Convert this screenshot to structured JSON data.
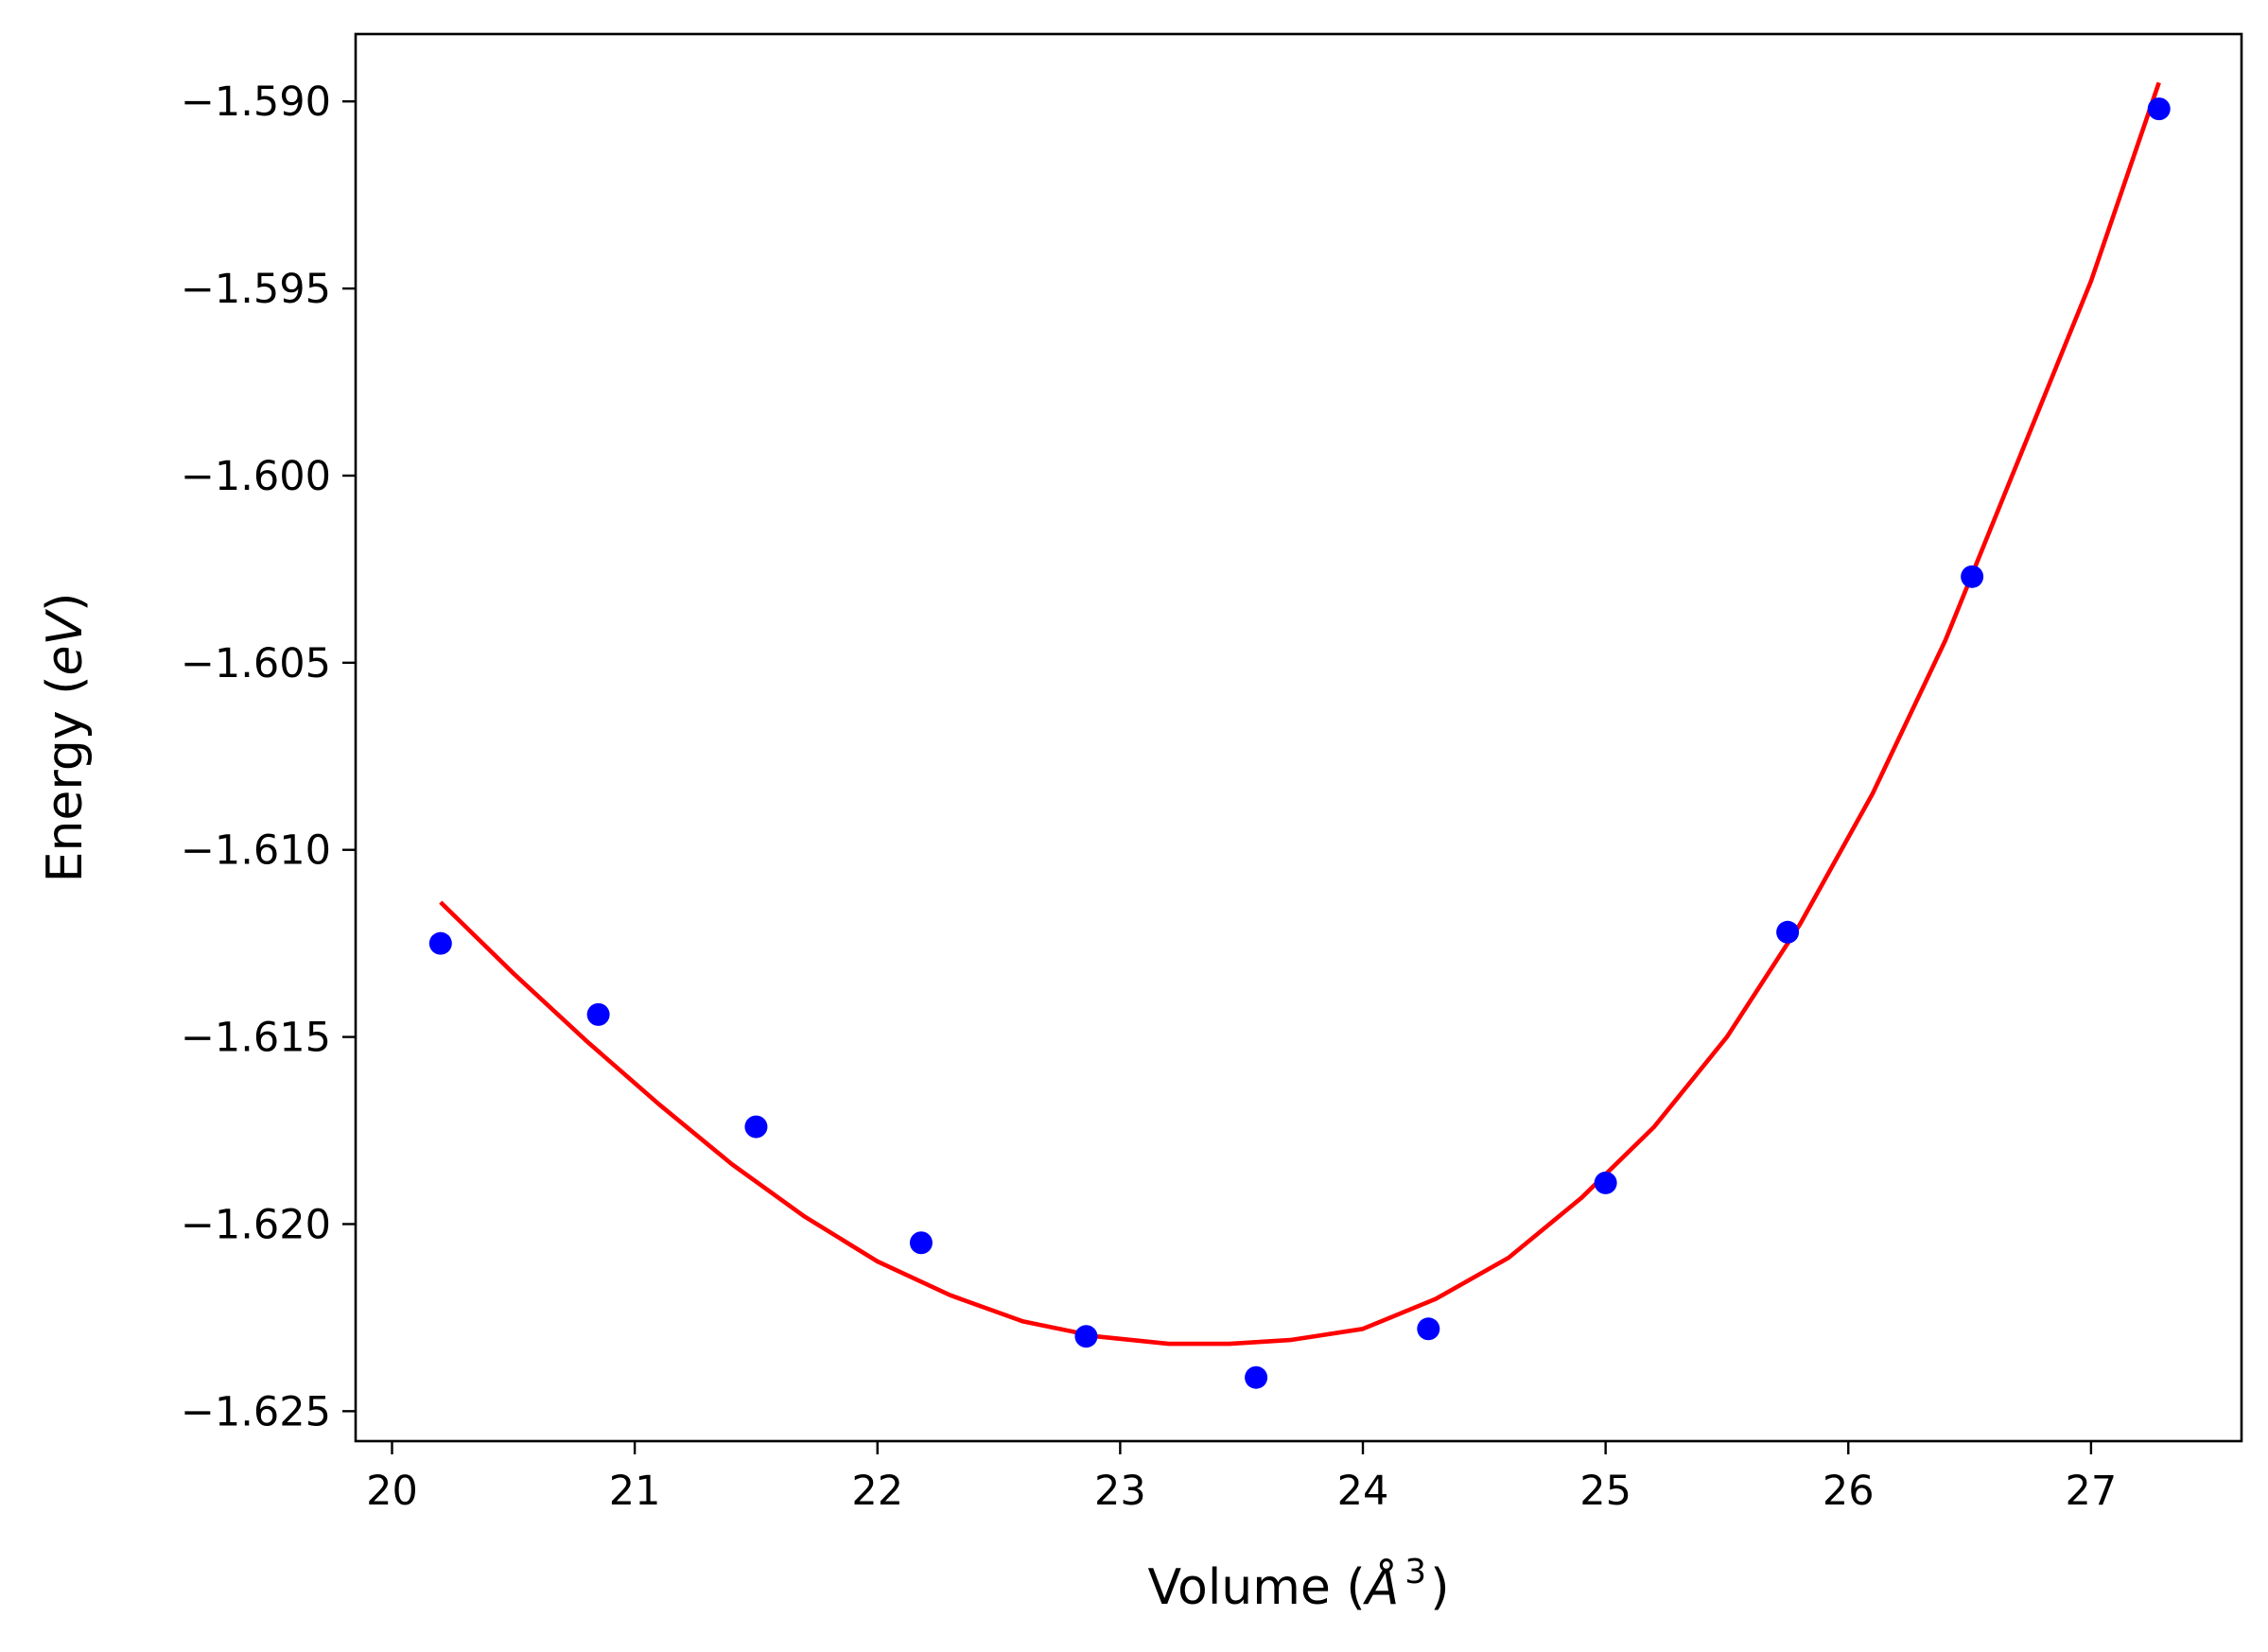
{
  "chart_data": {
    "type": "scatter",
    "title": "",
    "xlabel_prefix": "Volume (",
    "xlabel_symbol": "Å",
    "xlabel_exponent": "3",
    "xlabel_suffix": ")",
    "ylabel_prefix": "Energy (",
    "ylabel_symbol": "eV",
    "ylabel_suffix": ")",
    "xlim": [
      19.85,
      27.62
    ],
    "ylim": [
      -1.6258,
      -1.5882
    ],
    "xticks": [
      20,
      21,
      22,
      23,
      24,
      25,
      26,
      27
    ],
    "xtick_labels": [
      "20",
      "21",
      "22",
      "23",
      "24",
      "25",
      "26",
      "27"
    ],
    "yticks": [
      -1.59,
      -1.595,
      -1.6,
      -1.605,
      -1.61,
      -1.615,
      -1.62,
      -1.625
    ],
    "ytick_labels": [
      "−1.590",
      "−1.595",
      "−1.600",
      "−1.605",
      "−1.610",
      "−1.615",
      "−1.620",
      "−1.625"
    ],
    "grid": false,
    "legend": "none",
    "series": [
      {
        "kind": "points",
        "color": "#0000ff",
        "x": [
          20.2,
          20.85,
          21.5,
          22.18,
          22.86,
          23.56,
          24.27,
          25.0,
          25.75,
          26.51,
          27.28
        ],
        "y": [
          -1.6125,
          -1.6144,
          -1.6174,
          -1.6205,
          -1.623,
          -1.6241,
          -1.6228,
          -1.6189,
          -1.6122,
          -1.6027,
          -1.5902
        ]
      },
      {
        "kind": "fit",
        "color": "#ff0000",
        "x": [
          20.2,
          20.5,
          20.8,
          21.1,
          21.4,
          21.7,
          22.0,
          22.3,
          22.6,
          22.9,
          23.2,
          23.45,
          23.7,
          24.0,
          24.3,
          24.6,
          24.9,
          25.2,
          25.5,
          25.8,
          26.1,
          26.4,
          26.7,
          27.0,
          27.28
        ],
        "y": [
          -1.6114,
          -1.6133,
          -1.6151,
          -1.6168,
          -1.6184,
          -1.6198,
          -1.621,
          -1.6219,
          -1.6226,
          -1.623,
          -1.6232,
          -1.6232,
          -1.6231,
          -1.6228,
          -1.622,
          -1.6209,
          -1.6193,
          -1.6174,
          -1.615,
          -1.612,
          -1.6085,
          -1.6044,
          -1.5996,
          -1.5948,
          -1.5895
        ]
      }
    ]
  }
}
